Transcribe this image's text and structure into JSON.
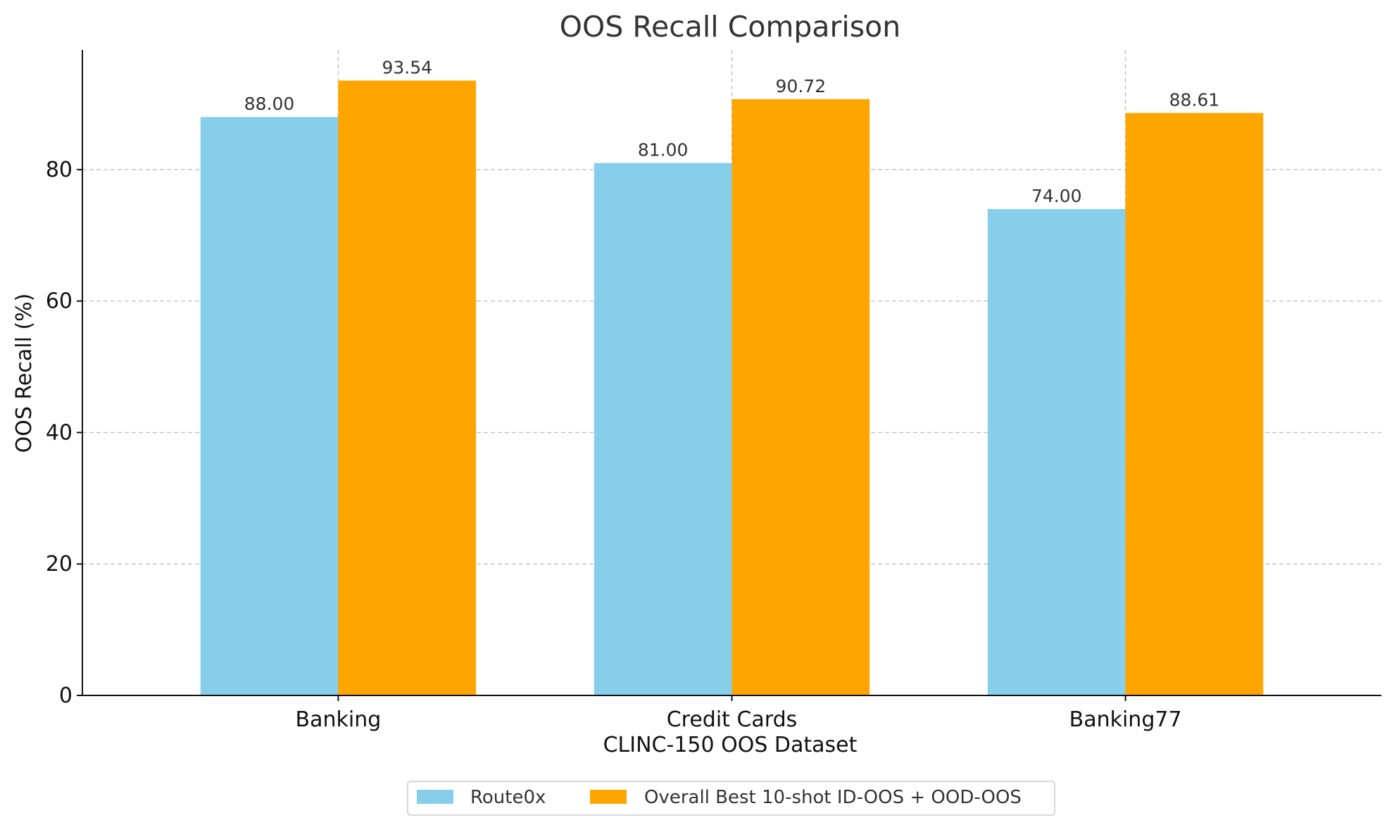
{
  "chart_data": {
    "type": "bar",
    "title": "OOS Recall Comparison",
    "xlabel": "CLINC-150 OOS Dataset",
    "ylabel": "OOS Recall (%)",
    "categories": [
      "Banking",
      "Credit Cards",
      "Banking77"
    ],
    "series": [
      {
        "name": "Route0x",
        "values": [
          88.0,
          81.0,
          74.0
        ],
        "labels": [
          "88.00",
          "81.00",
          "74.00"
        ],
        "color": "#87CEEB"
      },
      {
        "name": "Overall Best 10-shot ID-OOS + OOD-OOS",
        "values": [
          93.54,
          90.72,
          88.61
        ],
        "labels": [
          "93.54",
          "90.72",
          "88.61"
        ],
        "color": "#FFA500"
      }
    ],
    "ylim": [
      0,
      98.2
    ],
    "yticks": [
      0,
      20,
      40,
      60,
      80
    ],
    "grid": true,
    "legend_position": "bottom-center"
  }
}
